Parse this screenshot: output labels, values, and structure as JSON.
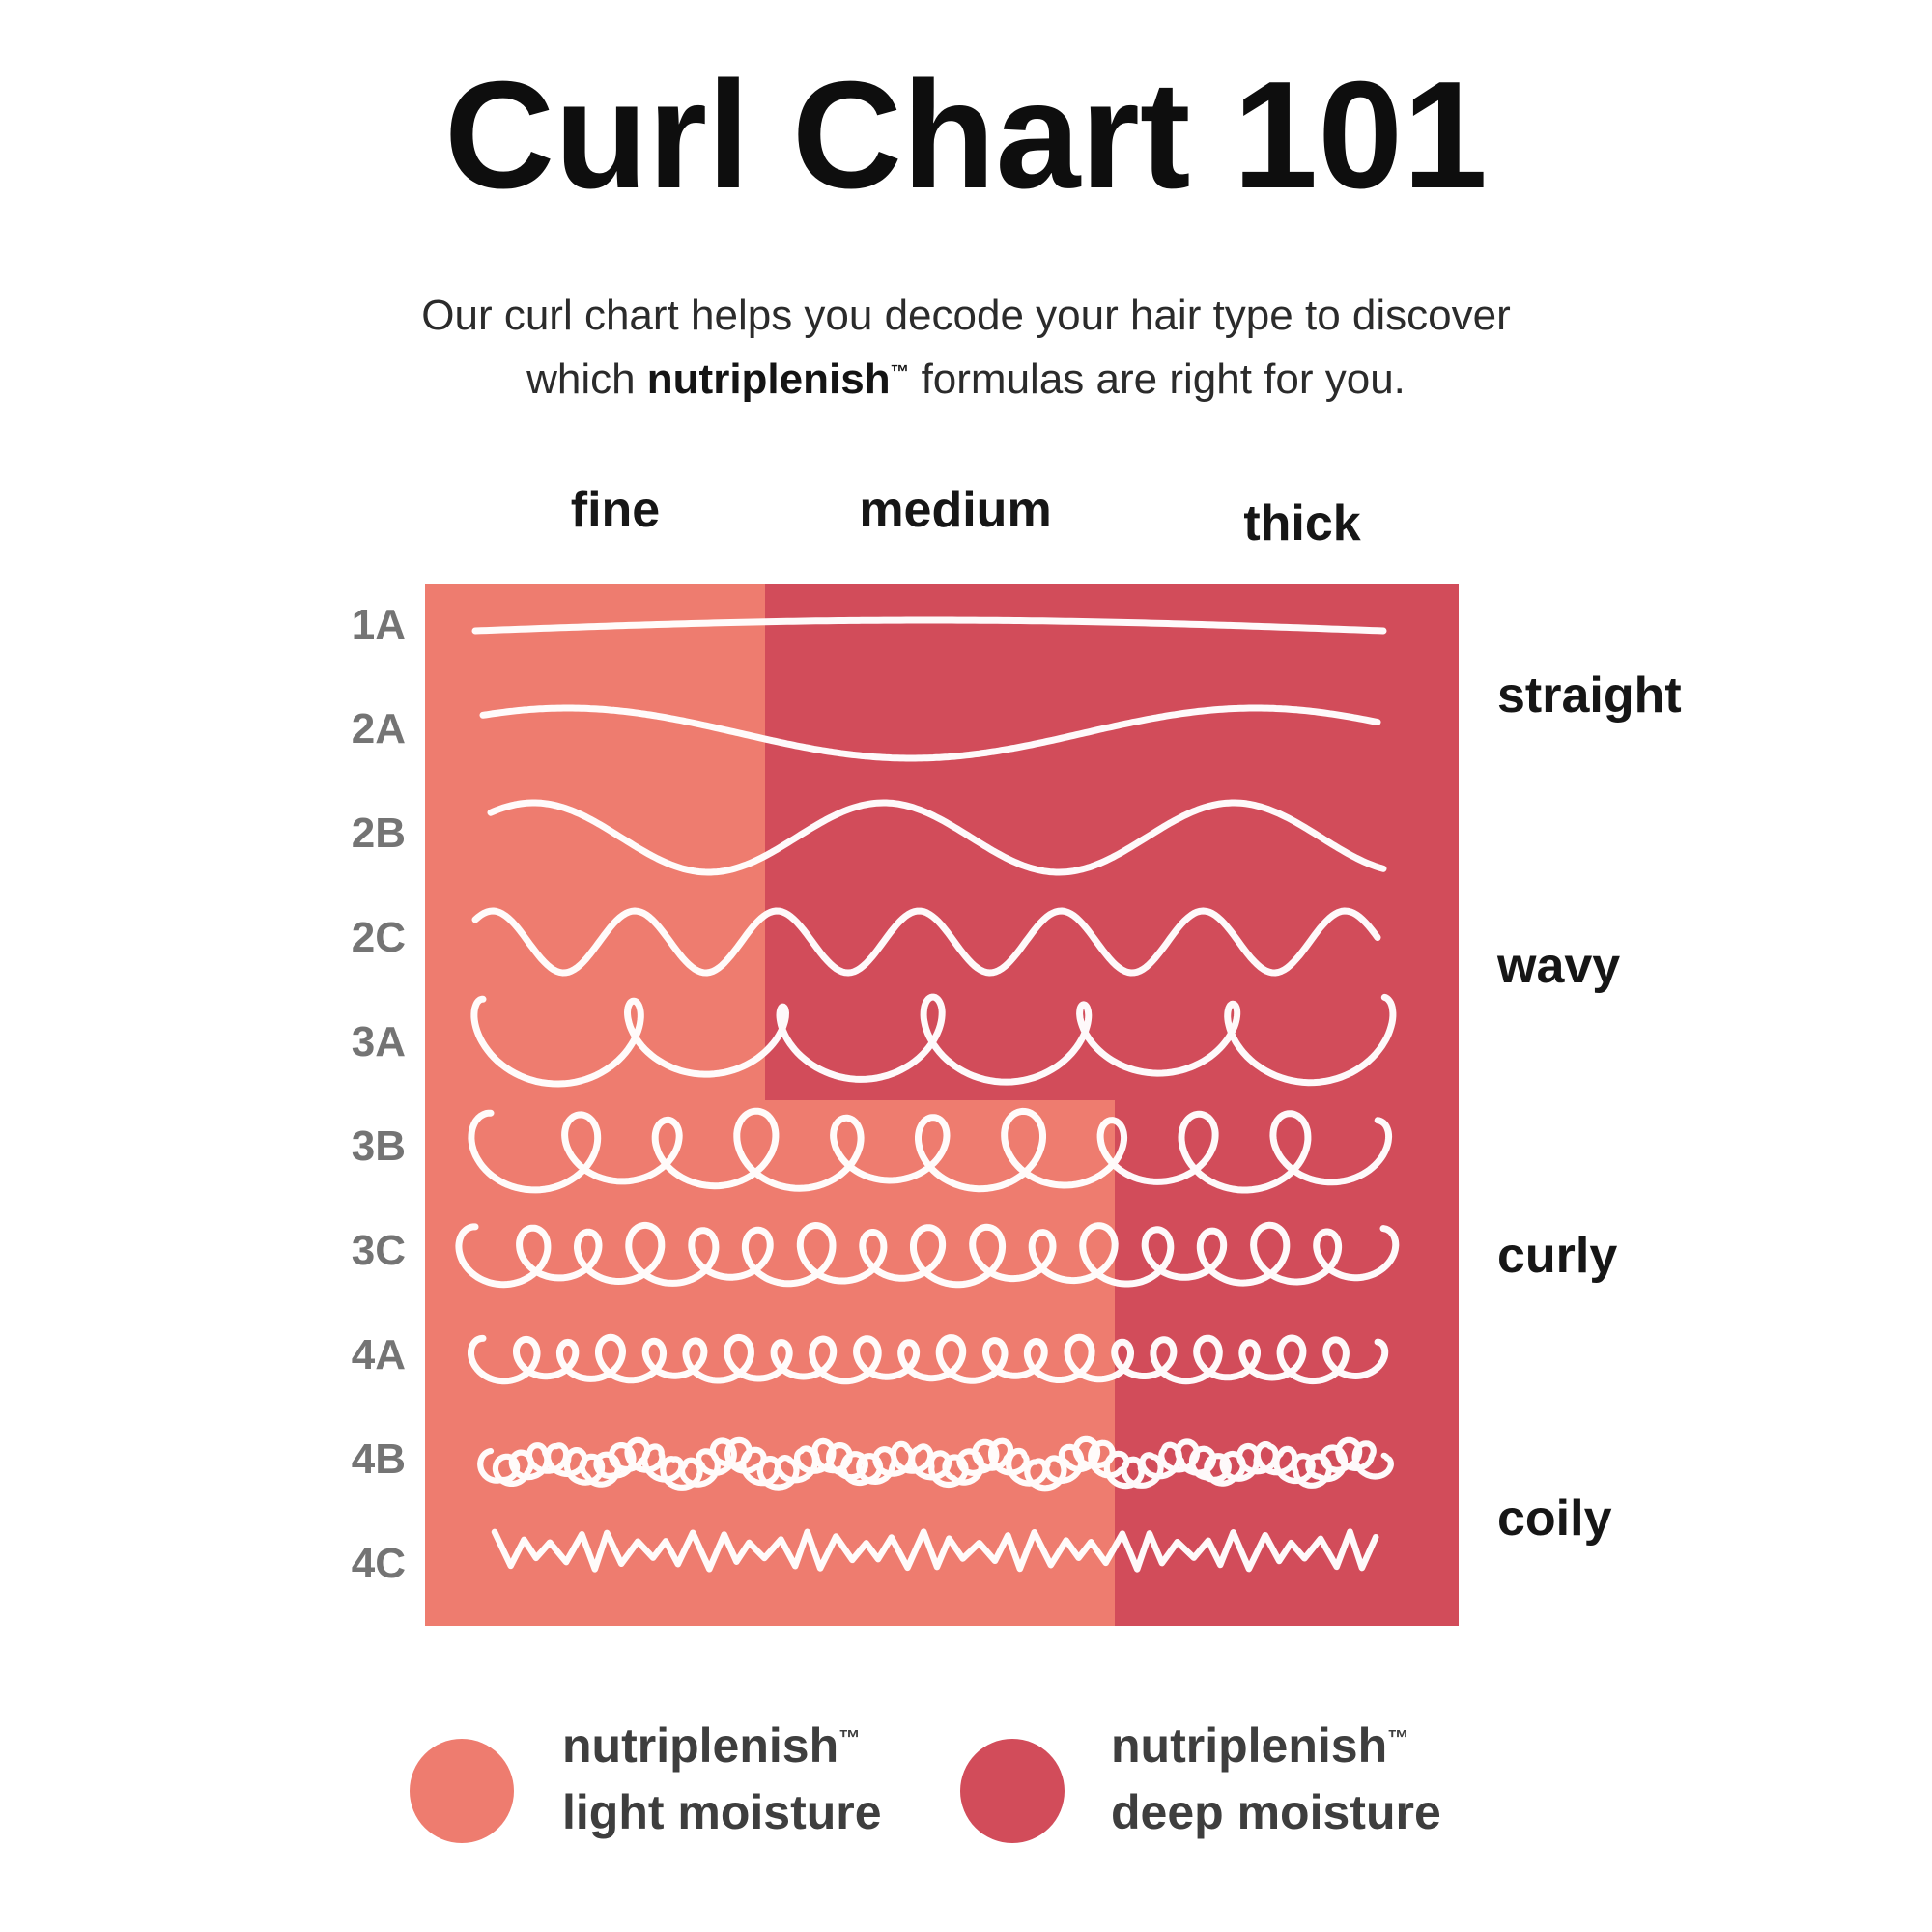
{
  "page": {
    "title": "Curl Chart 101",
    "subtitle_line1": "Our curl chart helps you decode your hair type to discover",
    "subtitle_line2_pre": "which ",
    "brand": "nutriplenish",
    "tm": "™",
    "subtitle_line2_post": " formulas are right for you."
  },
  "columns": [
    "fine",
    "medium",
    "thick"
  ],
  "groups": [
    "straight",
    "wavy",
    "curly",
    "coily"
  ],
  "curl_types": [
    {
      "label": "1A",
      "group": "straight",
      "pattern": "line",
      "amp": 11,
      "cycles": 1.0
    },
    {
      "label": "2A",
      "group": "straight",
      "pattern": "wave",
      "amp": 26,
      "cycles": 1.3
    },
    {
      "label": "2B",
      "group": "wavy",
      "pattern": "wave",
      "amp": 36,
      "cycles": 2.55
    },
    {
      "label": "2C",
      "group": "wavy",
      "pattern": "wave",
      "amp": 32,
      "cycles": 6.35
    },
    {
      "label": "3A",
      "group": "wavy",
      "pattern": "loop",
      "loops": 6,
      "size": 36
    },
    {
      "label": "3B",
      "group": "curly",
      "pattern": "loop",
      "loops": 10,
      "size": 36
    },
    {
      "label": "3C",
      "group": "curly",
      "pattern": "loop",
      "loops": 16,
      "size": 27
    },
    {
      "label": "4A",
      "group": "curly",
      "pattern": "loop",
      "loops": 21,
      "size": 20
    },
    {
      "label": "4B",
      "group": "coily",
      "pattern": "scribble",
      "loops": 54,
      "size": 13
    },
    {
      "label": "4C",
      "group": "coily",
      "pattern": "zigzag",
      "zigs": 31,
      "amp": 18
    }
  ],
  "legend": {
    "items": [
      {
        "brand": "nutriplenish",
        "tm": "™",
        "label": "light moisture",
        "color": "#EE7C6F"
      },
      {
        "brand": "nutriplenish",
        "tm": "™",
        "label": "deep moisture",
        "color": "#D24C5A"
      }
    ]
  },
  "colors": {
    "light_moisture": "#EE7C6F",
    "deep_moisture": "#D24C5A",
    "curl_line": "#FFFFFF",
    "row_label": "#747474",
    "heading_text": "#161616"
  },
  "chart_data": {
    "type": "table",
    "title": "Curl Chart 101",
    "columns": [
      "fine",
      "medium",
      "thick"
    ],
    "rows": [
      "1A",
      "2A",
      "2B",
      "2C",
      "3A",
      "3B",
      "3C",
      "4A",
      "4B",
      "4C"
    ],
    "row_groups": {
      "straight": [
        "1A",
        "2A"
      ],
      "wavy": [
        "2B",
        "2C",
        "3A"
      ],
      "curly": [
        "3B",
        "3C",
        "4A"
      ],
      "coily": [
        "4B",
        "4C"
      ]
    },
    "recommendation_matrix": {
      "1A": {
        "fine": "light moisture",
        "medium": "deep moisture",
        "thick": "deep moisture"
      },
      "2A": {
        "fine": "light moisture",
        "medium": "deep moisture",
        "thick": "deep moisture"
      },
      "2B": {
        "fine": "light moisture",
        "medium": "deep moisture",
        "thick": "deep moisture"
      },
      "2C": {
        "fine": "light moisture",
        "medium": "deep moisture",
        "thick": "deep moisture"
      },
      "3A": {
        "fine": "light moisture",
        "medium": "deep moisture",
        "thick": "deep moisture"
      },
      "3B": {
        "fine": "light moisture",
        "medium": "light moisture",
        "thick": "deep moisture"
      },
      "3C": {
        "fine": "light moisture",
        "medium": "light moisture",
        "thick": "deep moisture"
      },
      "4A": {
        "fine": "light moisture",
        "medium": "light moisture",
        "thick": "deep moisture"
      },
      "4B": {
        "fine": "light moisture",
        "medium": "light moisture",
        "thick": "deep moisture"
      },
      "4C": {
        "fine": "light moisture",
        "medium": "light moisture",
        "thick": "deep moisture"
      }
    },
    "legend": [
      {
        "label": "nutriplenish™ light moisture",
        "color": "#EE7C6F"
      },
      {
        "label": "nutriplenish™ deep moisture",
        "color": "#D24C5A"
      }
    ]
  }
}
